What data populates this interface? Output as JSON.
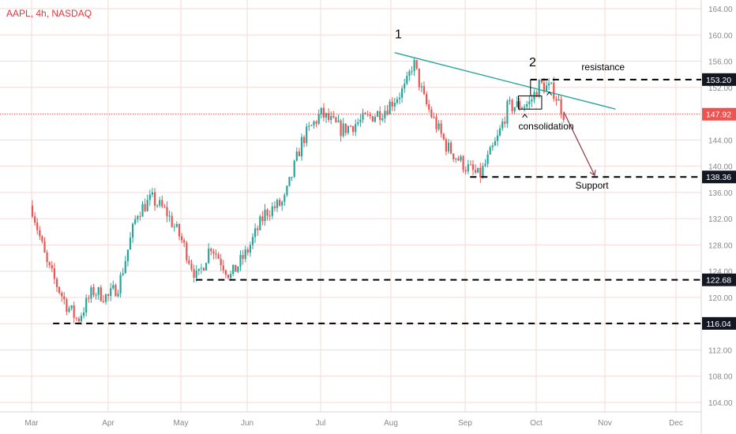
{
  "header": {
    "symbol_title": "AAPL, 4h, NASDAQ"
  },
  "colors": {
    "up": "#26a69a",
    "down": "#ef5350",
    "trendline": "#26a69a",
    "axis_text": "#888888",
    "annotation": "#000000",
    "grid": "#f7d9d9"
  },
  "chart_data": {
    "type": "candlestick",
    "symbol": "AAPL",
    "interval": "4h",
    "exchange": "NASDAQ",
    "x_labels": [
      "Mar",
      "Apr",
      "May",
      "Jun",
      "Jul",
      "Aug",
      "Sep",
      "Oct",
      "Nov",
      "Dec"
    ],
    "y_ticks": [
      "104.00",
      "108.00",
      "112.00",
      "116.00",
      "120.00",
      "124.00",
      "128.00",
      "132.00",
      "136.00",
      "140.00",
      "144.00",
      "148.00",
      "152.00",
      "156.00",
      "160.00",
      "164.00"
    ],
    "ylim": [
      103,
      165
    ],
    "price_tags": [
      {
        "value": "153.20",
        "dark": true
      },
      {
        "value": "147.92",
        "dark": false,
        "current": true
      },
      {
        "value": "138.36",
        "dark": true
      },
      {
        "value": "122.68",
        "dark": true
      },
      {
        "value": "116.04",
        "dark": true
      }
    ],
    "path": [
      {
        "m": 0.0,
        "p": 134
      },
      {
        "m": 0.2,
        "p": 125
      },
      {
        "m": 0.45,
        "p": 119
      },
      {
        "m": 0.6,
        "p": 116.5
      },
      {
        "m": 0.8,
        "p": 121
      },
      {
        "m": 1.0,
        "p": 120
      },
      {
        "m": 1.15,
        "p": 122
      },
      {
        "m": 1.4,
        "p": 133
      },
      {
        "m": 1.6,
        "p": 135
      },
      {
        "m": 1.8,
        "p": 133
      },
      {
        "m": 2.0,
        "p": 129
      },
      {
        "m": 2.25,
        "p": 122.7
      },
      {
        "m": 2.45,
        "p": 128
      },
      {
        "m": 2.75,
        "p": 123.2
      },
      {
        "m": 3.0,
        "p": 127
      },
      {
        "m": 3.25,
        "p": 133
      },
      {
        "m": 3.5,
        "p": 134.5
      },
      {
        "m": 3.75,
        "p": 144
      },
      {
        "m": 4.0,
        "p": 148
      },
      {
        "m": 4.3,
        "p": 145.5
      },
      {
        "m": 4.6,
        "p": 147
      },
      {
        "m": 4.9,
        "p": 148.5
      },
      {
        "m": 5.2,
        "p": 152
      },
      {
        "m": 5.3,
        "p": 156
      },
      {
        "m": 5.45,
        "p": 150
      },
      {
        "m": 5.75,
        "p": 143
      },
      {
        "m": 6.0,
        "p": 140
      },
      {
        "m": 6.2,
        "p": 138.4
      },
      {
        "m": 6.45,
        "p": 144
      },
      {
        "m": 6.6,
        "p": 149
      },
      {
        "m": 6.9,
        "p": 149.5
      },
      {
        "m": 7.05,
        "p": 152.5
      },
      {
        "m": 7.25,
        "p": 151.5
      },
      {
        "m": 7.4,
        "p": 148
      }
    ],
    "trendline": [
      {
        "m": 5.05,
        "p": 157.3
      },
      {
        "m": 8.15,
        "p": 148.7
      }
    ],
    "levels": [
      {
        "p": 153.2,
        "m_from": 6.92
      },
      {
        "p": 138.36,
        "m_from": 6.07
      },
      {
        "p": 122.68,
        "m_from": 2.23
      },
      {
        "p": 116.04,
        "m_from": 0.28
      }
    ],
    "projection": [
      {
        "m": 7.4,
        "p": 148.3
      },
      {
        "m": 7.85,
        "p": 138.6
      }
    ],
    "consolidation_box": {
      "m": [
        6.75,
        7.08
      ],
      "p": [
        148.7,
        150.7
      ]
    },
    "annotations": {
      "peak1": {
        "text": "1",
        "m": 5.1,
        "p": 159.5
      },
      "peak2": {
        "text": "2",
        "m": 6.95,
        "p": 155.2
      },
      "resistance": {
        "text": "resistance",
        "m": 7.66,
        "p": 154.6
      },
      "consolidation": {
        "text": "consolidation",
        "m": 6.75,
        "p": 145.6
      },
      "support": {
        "text": "Support",
        "m": 7.57,
        "p": 136.6
      }
    },
    "grid": true
  }
}
